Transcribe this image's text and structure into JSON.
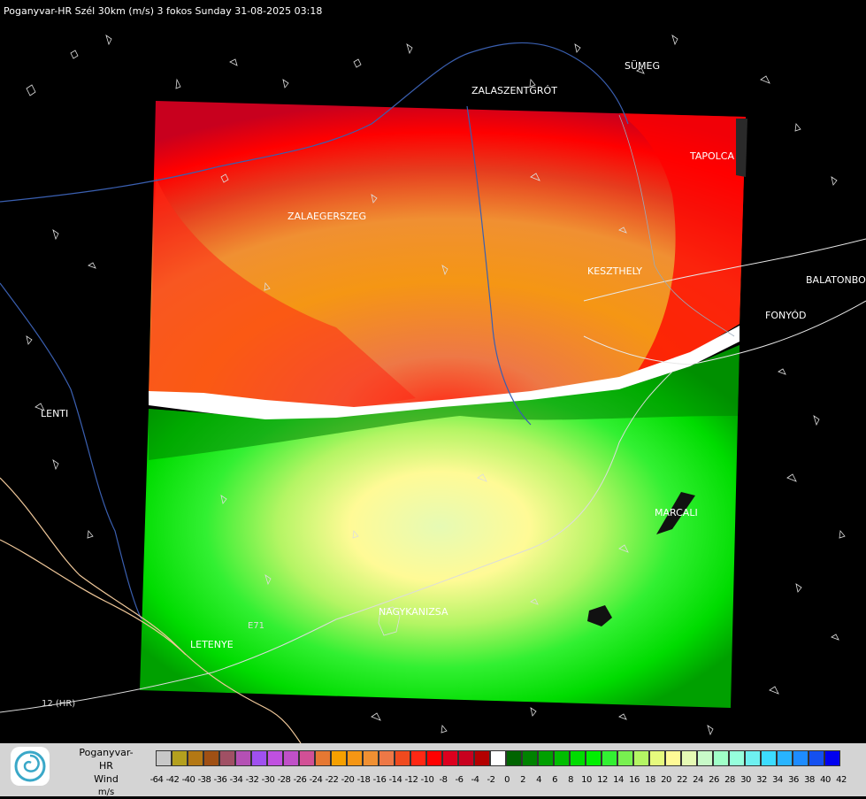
{
  "title": "Poganyvar-HR Szél 30km (m/s) 3 fokos Sunday 31-08-2025 03:18",
  "cities": [
    {
      "name": "SÜMEG"
    },
    {
      "name": "ZALASZENTGRÓT"
    },
    {
      "name": "TAPOLCA"
    },
    {
      "name": "ZALAEGERSZEG"
    },
    {
      "name": "KESZTHELY"
    },
    {
      "name": "BALATONBO"
    },
    {
      "name": "FONYÓD"
    },
    {
      "name": "LENTI"
    },
    {
      "name": "MARCALI"
    },
    {
      "name": "NAGYKANIZSA"
    },
    {
      "name": "LETENYE"
    }
  ],
  "roads": [
    {
      "name": "12 (HR)"
    },
    {
      "name": "E71"
    }
  ],
  "legend": {
    "title_lines": [
      "Poganyvar-HR",
      "Wind",
      "m/s"
    ],
    "colors": [
      "#c8c8c8",
      "#b4a01e",
      "#b47814",
      "#a05014",
      "#a05064",
      "#b450b4",
      "#a050f0",
      "#c050e0",
      "#c050c8",
      "#d25096",
      "#e67832",
      "#f5a000",
      "#f59614",
      "#f09032",
      "#ee7846",
      "#f04a1e",
      "#ff2814",
      "#ff0000",
      "#dc001e",
      "#c8001e",
      "#b40000",
      "#ffffff",
      "#006400",
      "#008200",
      "#00a000",
      "#00be00",
      "#00dc00",
      "#00f000",
      "#32f032",
      "#78f050",
      "#b4f564",
      "#e6fa7d",
      "#fffa96",
      "#e6fab4",
      "#c8fac8",
      "#a0ffc8",
      "#96ffdc",
      "#6ef0f0",
      "#3cdcff",
      "#28b4ff",
      "#1e8cff",
      "#1450f0",
      "#0000f0"
    ],
    "ticks": [
      "-64",
      "-42",
      "-40",
      "-38",
      "-36",
      "-34",
      "-32",
      "-30",
      "-28",
      "-26",
      "-24",
      "-22",
      "-20",
      "-18",
      "-16",
      "-14",
      "-12",
      "-10",
      "-8",
      "-6",
      "-4",
      "-2",
      "0",
      "2",
      "4",
      "6",
      "8",
      "10",
      "12",
      "14",
      "16",
      "18",
      "20",
      "22",
      "24",
      "26",
      "28",
      "30",
      "32",
      "34",
      "36",
      "38",
      "40",
      "42"
    ]
  }
}
